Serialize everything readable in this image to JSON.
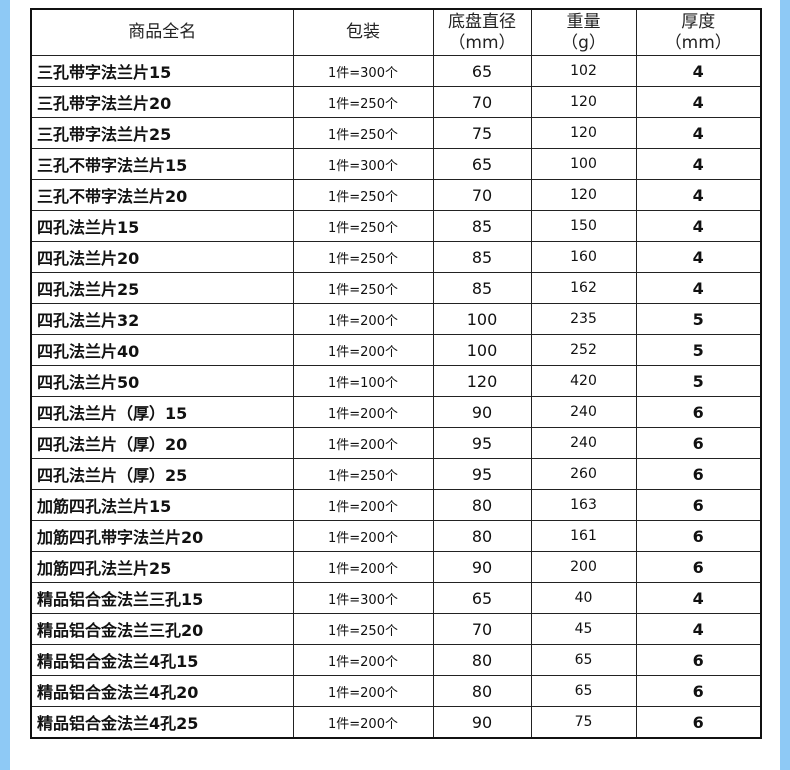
{
  "headers": [
    "商品全名",
    "包装",
    "底盘直径\n（mm）",
    "重量\n（g）",
    "厚度\n（mm）"
  ],
  "header_lines": [
    [
      "商品全名"
    ],
    [
      "包装"
    ],
    [
      "底盘直径",
      "（mm）"
    ],
    [
      "重量",
      "（g）"
    ],
    [
      "厚度",
      "（mm）"
    ]
  ],
  "rows": [
    [
      "三孔带字法兰片15",
      "1件=300个",
      "65",
      "102",
      "4"
    ],
    [
      "三孔带字法兰片20",
      "1件=250个",
      "70",
      "120",
      "4"
    ],
    [
      "三孔带字法兰片25",
      "1件=250个",
      "75",
      "120",
      "4"
    ],
    [
      "三孔不带字法兰片15",
      "1件=300个",
      "65",
      "100",
      "4"
    ],
    [
      "三孔不带字法兰片20",
      "1件=250个",
      "70",
      "120",
      "4"
    ],
    [
      "四孔法兰片15",
      "1件=250个",
      "85",
      "150",
      "4"
    ],
    [
      "四孔法兰片20",
      "1件=250个",
      "85",
      "160",
      "4"
    ],
    [
      "四孔法兰片25",
      "1件=250个",
      "85",
      "162",
      "4"
    ],
    [
      "四孔法兰片32",
      "1件=200个",
      "100",
      "235",
      "5"
    ],
    [
      "四孔法兰片40",
      "1件=200个",
      "100",
      "252",
      "5"
    ],
    [
      "四孔法兰片50",
      "1件=100个",
      "120",
      "420",
      "5"
    ],
    [
      "四孔法兰片（厚）15",
      "1件=200个",
      "90",
      "240",
      "6"
    ],
    [
      "四孔法兰片（厚）20",
      "1件=200个",
      "95",
      "240",
      "6"
    ],
    [
      "四孔法兰片（厚）25",
      "1件=250个",
      "95",
      "260",
      "6"
    ],
    [
      "加筋四孔法兰片15",
      "1件=200个",
      "80",
      "163",
      "6"
    ],
    [
      "加筋四孔带字法兰片20",
      "1件=200个",
      "80",
      "161",
      "6"
    ],
    [
      "加筋四孔法兰片25",
      "1件=200个",
      "90",
      "200",
      "6"
    ],
    [
      "精品铝合金法兰三孔15",
      "1件=300个",
      "65",
      "40",
      "4"
    ],
    [
      "精品铝合金法兰三孔20",
      "1件=250个",
      "70",
      "45",
      "4"
    ],
    [
      "精品铝合金法兰4孔15",
      "1件=200个",
      "80",
      "65",
      "6"
    ],
    [
      "精品铝合金法兰4孔20",
      "1件=200个",
      "80",
      "65",
      "6"
    ],
    [
      "精品铝合金法兰4孔25",
      "1件=200个",
      "90",
      "75",
      "6"
    ]
  ],
  "colors": {
    "border_bg": "#8ec9f5",
    "text": "#111111"
  }
}
